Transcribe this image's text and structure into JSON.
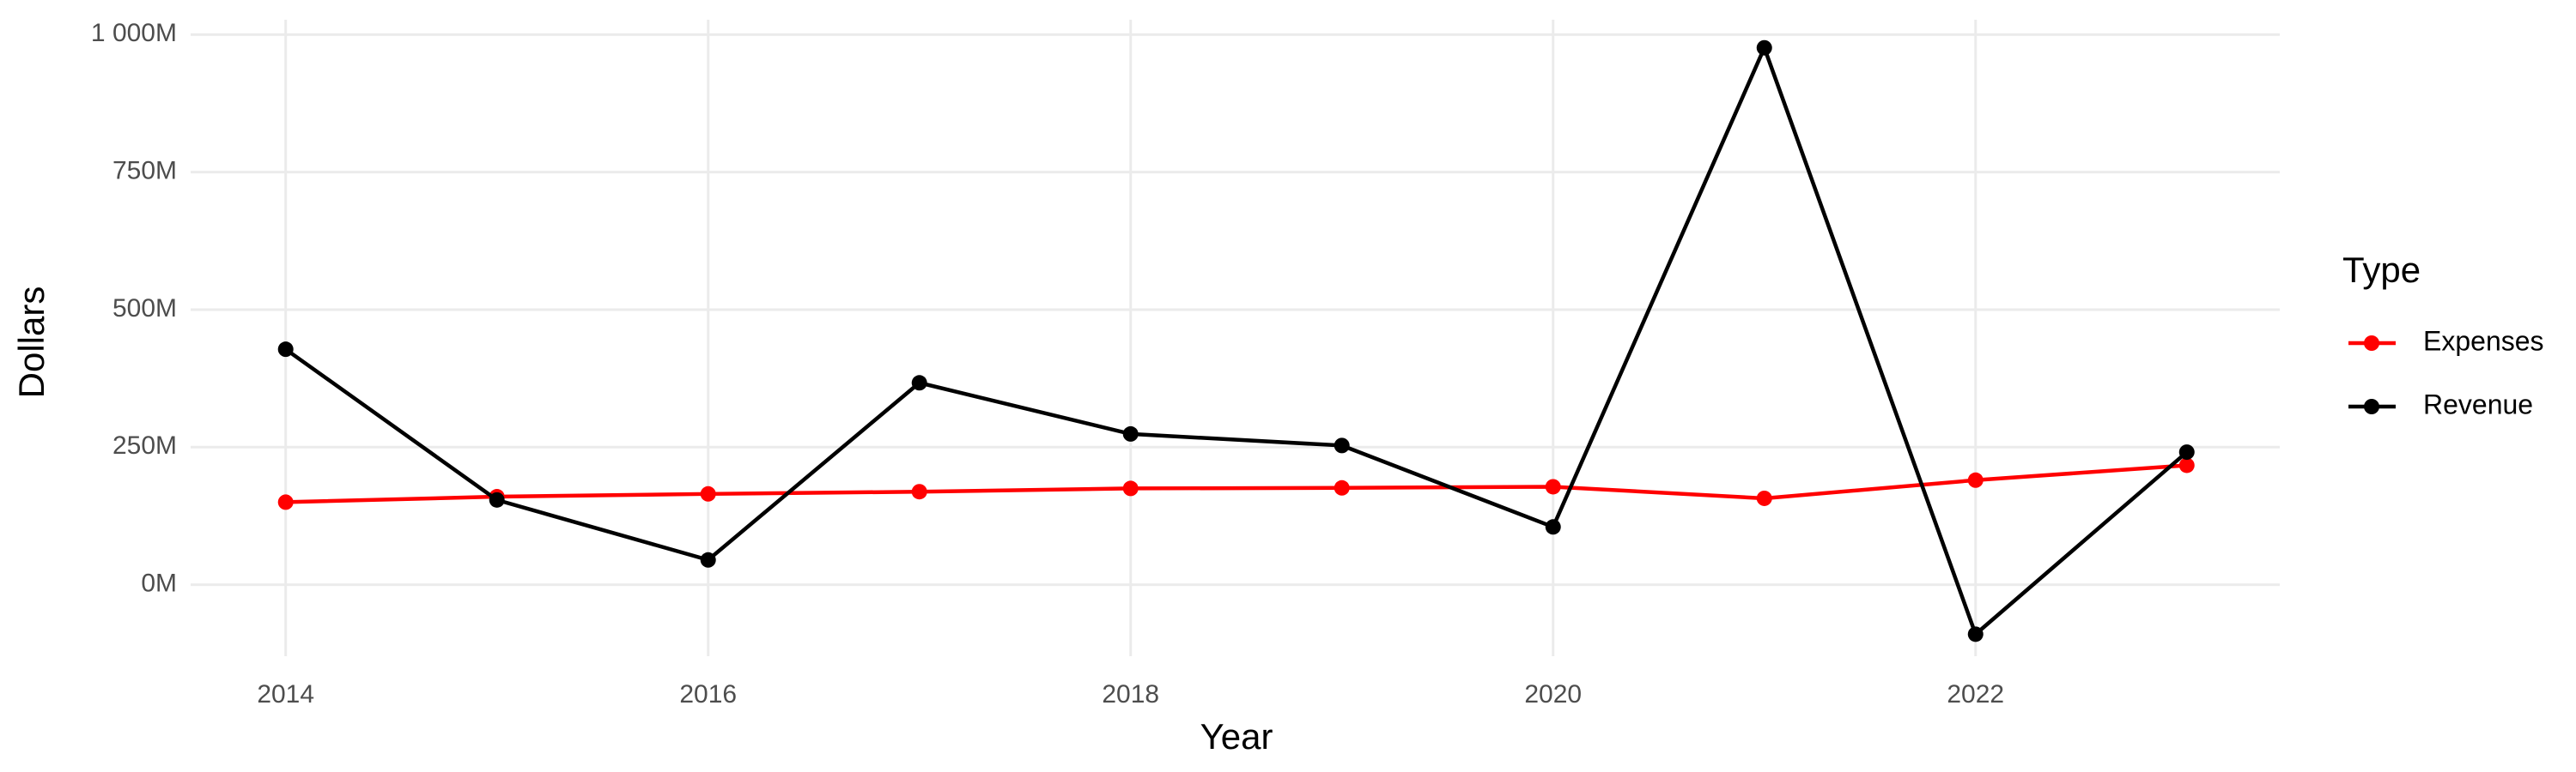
{
  "chart_data": {
    "type": "line",
    "x_label": "Year",
    "y_label": "Dollars",
    "legend_title": "Type",
    "legend_position": "right",
    "grid": true,
    "x": [
      2014,
      2015,
      2016,
      2017,
      2018,
      2019,
      2020,
      2021,
      2022,
      2023
    ],
    "series": [
      {
        "name": "Expenses",
        "color": "#ff0000",
        "values": [
          150000000,
          160000000,
          165000000,
          169000000,
          175000000,
          176000000,
          178000000,
          157000000,
          190000000,
          217000000
        ]
      },
      {
        "name": "Revenue",
        "color": "#000000",
        "values": [
          428000000,
          154000000,
          45000000,
          367000000,
          274000000,
          253000000,
          105000000,
          976000000,
          -90000000,
          241000000
        ]
      }
    ],
    "xlim": [
      2013.55,
      2023.44
    ],
    "xticks": [
      2014,
      2016,
      2018,
      2020,
      2022
    ],
    "ylim": [
      -130000000,
      1027000000
    ],
    "yticks": [
      {
        "value": 0,
        "label": "0M"
      },
      {
        "value": 250000000,
        "label": "250M"
      },
      {
        "value": 500000000,
        "label": "500M"
      },
      {
        "value": 750000000,
        "label": "750M"
      },
      {
        "value": 1000000000,
        "label": "1 000M"
      }
    ]
  }
}
